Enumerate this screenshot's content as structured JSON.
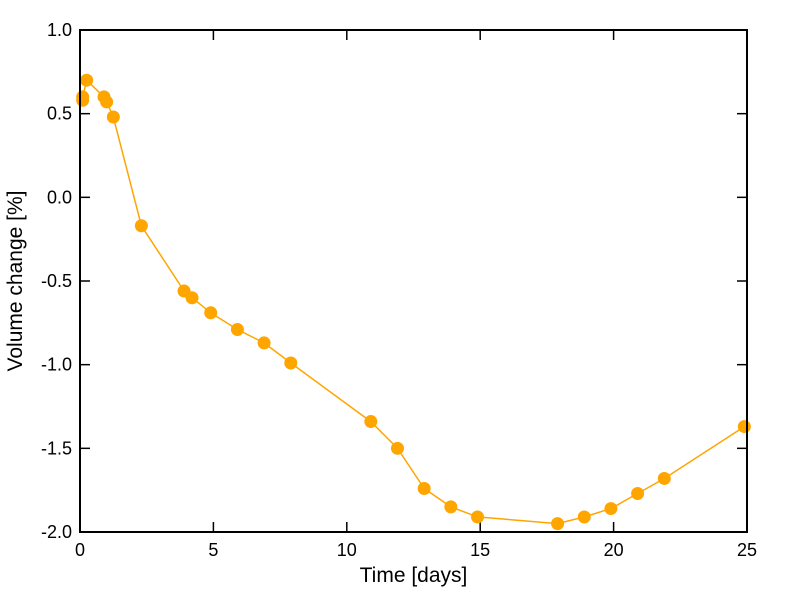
{
  "chart_data": {
    "type": "line",
    "title": "",
    "xlabel": "Time [days]",
    "ylabel": "Volume change [%]",
    "xlim": [
      0,
      25
    ],
    "ylim": [
      -2.0,
      1.0
    ],
    "xticks": [
      0,
      5,
      10,
      15,
      20,
      25
    ],
    "xtick_labels": [
      "0",
      "5",
      "10",
      "15",
      "20",
      "25"
    ],
    "yticks": [
      1.0,
      0.5,
      0.0,
      -0.5,
      -1.0,
      -1.5,
      -2.0
    ],
    "ytick_labels": [
      "1.0",
      "0.5",
      "0.0",
      "-0.5",
      "-1.0",
      "-1.5",
      "-2.0"
    ],
    "grid": false,
    "legend": "none",
    "series": [
      {
        "color": "#FFA500",
        "marker": "circle",
        "x": [
          0.1,
          0.1,
          0.25,
          0.9,
          1.0,
          1.25,
          2.3,
          3.9,
          4.2,
          4.9,
          5.9,
          6.9,
          7.9,
          10.9,
          11.9,
          12.9,
          13.9,
          14.9,
          17.9,
          18.9,
          19.9,
          20.9,
          21.9,
          24.9
        ],
        "y": [
          0.58,
          0.6,
          0.7,
          0.6,
          0.57,
          0.48,
          -0.17,
          -0.56,
          -0.6,
          -0.69,
          -0.79,
          -0.87,
          -0.99,
          -1.34,
          -1.5,
          -1.74,
          -1.85,
          -1.91,
          -1.95,
          -1.91,
          -1.86,
          -1.77,
          -1.68,
          -1.37
        ]
      }
    ]
  }
}
